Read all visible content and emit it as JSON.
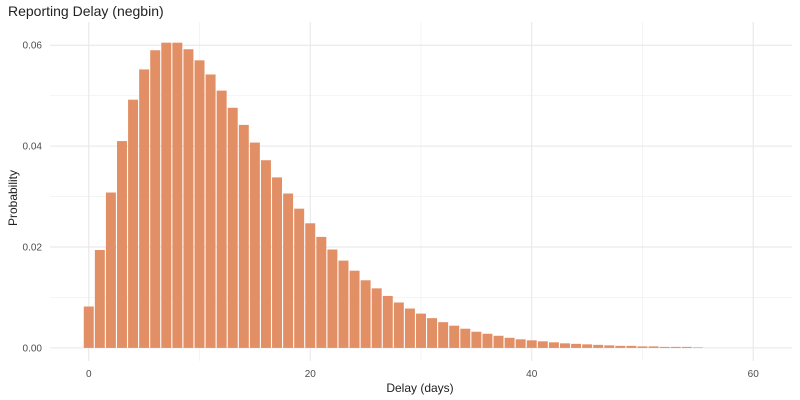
{
  "chart_data": {
    "type": "bar",
    "title": "Reporting Delay (negbin)",
    "xlabel": "Delay (days)",
    "ylabel": "Probability",
    "xlim": [
      -3.5,
      63.5
    ],
    "ylim": [
      -0.0026,
      0.0646
    ],
    "x_ticks": [
      0,
      20,
      40,
      60
    ],
    "x_tick_labels": [
      "0",
      "20",
      "40",
      "60"
    ],
    "y_ticks": [
      0.0,
      0.02,
      0.04,
      0.06
    ],
    "y_tick_labels": [
      "0.00",
      "0.02",
      "0.04",
      "0.06"
    ],
    "grid": true,
    "bar_color": "#E0895E",
    "x": [
      0,
      1,
      2,
      3,
      4,
      5,
      6,
      7,
      8,
      9,
      10,
      11,
      12,
      13,
      14,
      15,
      16,
      17,
      18,
      19,
      20,
      21,
      22,
      23,
      24,
      25,
      26,
      27,
      28,
      29,
      30,
      31,
      32,
      33,
      34,
      35,
      36,
      37,
      38,
      39,
      40,
      41,
      42,
      43,
      44,
      45,
      46,
      47,
      48,
      49,
      50,
      51,
      52,
      53,
      54,
      55
    ],
    "values": [
      0.0082,
      0.0194,
      0.0308,
      0.041,
      0.0492,
      0.0552,
      0.059,
      0.0605,
      0.0605,
      0.0592,
      0.057,
      0.0542,
      0.051,
      0.0476,
      0.0442,
      0.0407,
      0.0372,
      0.0338,
      0.0306,
      0.0276,
      0.0247,
      0.022,
      0.0195,
      0.0173,
      0.0153,
      0.0134,
      0.0118,
      0.0103,
      0.009,
      0.0078,
      0.0068,
      0.0059,
      0.0051,
      0.0044,
      0.0038,
      0.0032,
      0.0028,
      0.0024,
      0.002,
      0.0017,
      0.0015,
      0.0013,
      0.0011,
      0.0009,
      0.0008,
      0.0007,
      0.0006,
      0.0005,
      0.0004,
      0.0004,
      0.0003,
      0.0003,
      0.0002,
      0.0002,
      0.0002,
      0.0001
    ]
  }
}
